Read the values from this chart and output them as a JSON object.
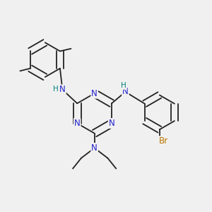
{
  "bg_color": "#f0f0f0",
  "bond_color": "#222222",
  "N_color": "#2222cc",
  "H_color": "#008080",
  "Br_color": "#bb7700",
  "bond_lw": 1.3,
  "dbo": 0.018,
  "fs": 8.5,
  "fs_small": 7.5,
  "fig_size": [
    3.0,
    3.0
  ],
  "dpi": 100,
  "xlim": [
    0,
    1
  ],
  "ylim": [
    0,
    1
  ]
}
